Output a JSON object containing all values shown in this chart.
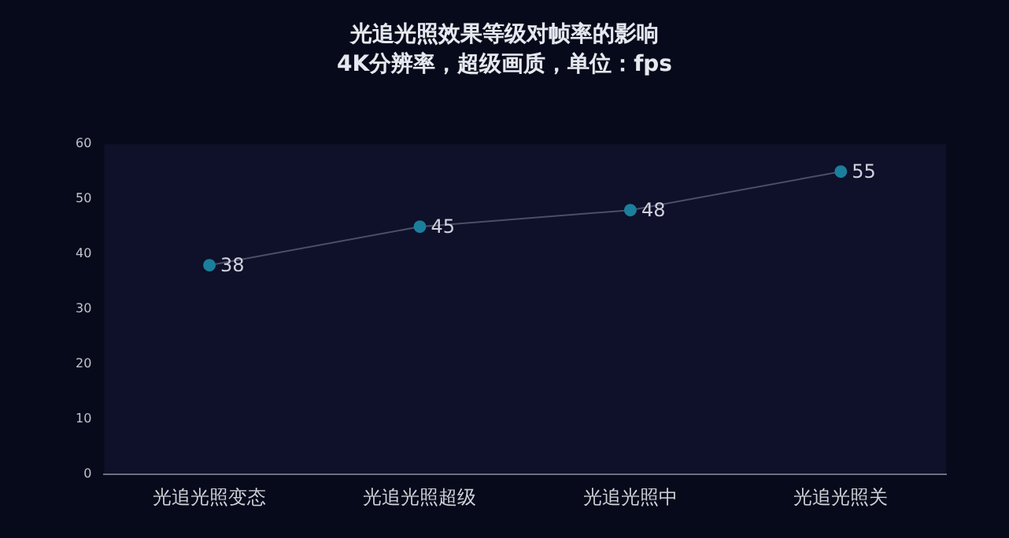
{
  "chart_data": {
    "type": "line",
    "title": "光追光照效果等级对帧率的影响",
    "subtitle": "4K分辨率，超级画质，单位：fps",
    "categories": [
      "光追光照变态",
      "光追光照超级",
      "光追光照中",
      "光追光照关"
    ],
    "series": [
      {
        "color": "#1b7f9c",
        "values": [
          38,
          45,
          48,
          55
        ]
      }
    ],
    "ylim": [
      0,
      60
    ],
    "yticks": [
      0,
      10,
      20,
      30,
      40,
      50,
      60
    ],
    "grid": false,
    "legend": false,
    "marker": "circle",
    "line_style": "solid",
    "data_labels": true
  }
}
